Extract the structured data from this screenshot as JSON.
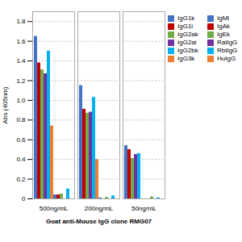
{
  "chart_data": {
    "type": "bar",
    "xlabel": "Goat anti-Mouse IgG clone RMG07",
    "ylabel": "Abs (405nm)",
    "categories": [
      "500ng/mL",
      "200ng/mL",
      "50ng/mL"
    ],
    "series": [
      {
        "name": "IgG1k",
        "color": "#4472C4",
        "values": [
          1.65,
          1.15,
          0.54
        ]
      },
      {
        "name": "IgG1l",
        "color": "#C00000",
        "values": [
          1.38,
          0.91,
          0.5
        ]
      },
      {
        "name": "IgG2ak",
        "color": "#70AD47",
        "values": [
          1.31,
          0.87,
          0.41
        ]
      },
      {
        "name": "IgG2al",
        "color": "#7030A0",
        "values": [
          1.27,
          0.88,
          0.45
        ]
      },
      {
        "name": "IgG2bk",
        "color": "#00B0F0",
        "values": [
          1.5,
          1.03,
          0.46
        ]
      },
      {
        "name": "IgG3k",
        "color": "#ED7D31",
        "values": [
          0.74,
          0.4,
          0.0
        ]
      },
      {
        "name": "IgMl",
        "color": "#4472C4",
        "values": [
          0.04,
          0.01,
          0.0
        ]
      },
      {
        "name": "IgAk",
        "color": "#C00000",
        "values": [
          0.04,
          0.0,
          0.0
        ]
      },
      {
        "name": "IgEk",
        "color": "#70AD47",
        "values": [
          0.05,
          0.015,
          0.02
        ]
      },
      {
        "name": "RatIgG",
        "color": "#7030A0",
        "values": [
          0.0,
          0.0,
          0.0
        ]
      },
      {
        "name": "RbtIgG",
        "color": "#00B0F0",
        "values": [
          0.1,
          0.03,
          0.01
        ]
      },
      {
        "name": "HuIgG",
        "color": "#ED7D31",
        "values": [
          0.0,
          0.0,
          0.0
        ]
      }
    ],
    "ylim": [
      0,
      1.9
    ],
    "yticks": [
      0,
      0.2,
      0.4,
      0.6,
      0.8,
      {
        "value": 1,
        "label": "1.0"
      },
      1.2,
      1.4,
      1.6,
      1.8
    ],
    "grid": true,
    "legend": "right"
  }
}
